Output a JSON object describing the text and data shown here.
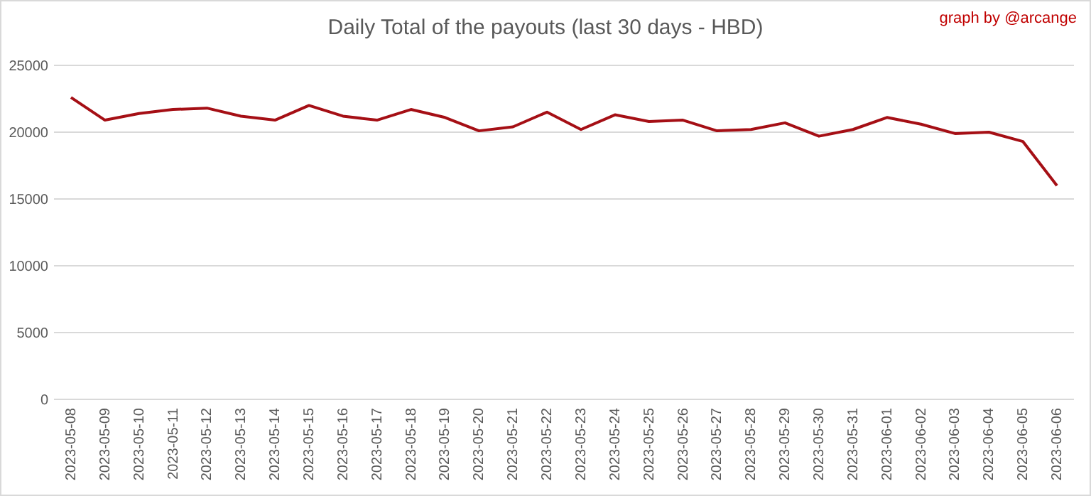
{
  "chart_data": {
    "type": "line",
    "title": "Daily Total of the payouts (last 30 days - HBD)",
    "annotations": [
      "graph by @arcange"
    ],
    "categories": [
      "2023-05-08",
      "2023-05-09",
      "2023-05-10",
      "2023-05-11",
      "2023-05-12",
      "2023-05-13",
      "2023-05-14",
      "2023-05-15",
      "2023-05-16",
      "2023-05-17",
      "2023-05-18",
      "2023-05-19",
      "2023-05-20",
      "2023-05-21",
      "2023-05-22",
      "2023-05-23",
      "2023-05-24",
      "2023-05-25",
      "2023-05-26",
      "2023-05-27",
      "2023-05-28",
      "2023-05-29",
      "2023-05-30",
      "2023-05-31",
      "2023-06-01",
      "2023-06-02",
      "2023-06-03",
      "2023-06-04",
      "2023-06-05",
      "2023-06-06"
    ],
    "series": [
      {
        "color": "#a50f15",
        "values": [
          22600,
          20900,
          21400,
          21700,
          21800,
          21200,
          20900,
          22000,
          21200,
          20900,
          21700,
          21100,
          20100,
          20400,
          21500,
          20200,
          21300,
          20800,
          20900,
          20100,
          20200,
          20700,
          19700,
          20200,
          21100,
          20600,
          19900,
          20000,
          19300,
          16000
        ]
      }
    ],
    "ylim": [
      0,
      25000
    ],
    "yticks": [
      0,
      5000,
      10000,
      15000,
      20000,
      25000
    ],
    "grid": "y",
    "marker": "none",
    "line_style": "solid"
  }
}
